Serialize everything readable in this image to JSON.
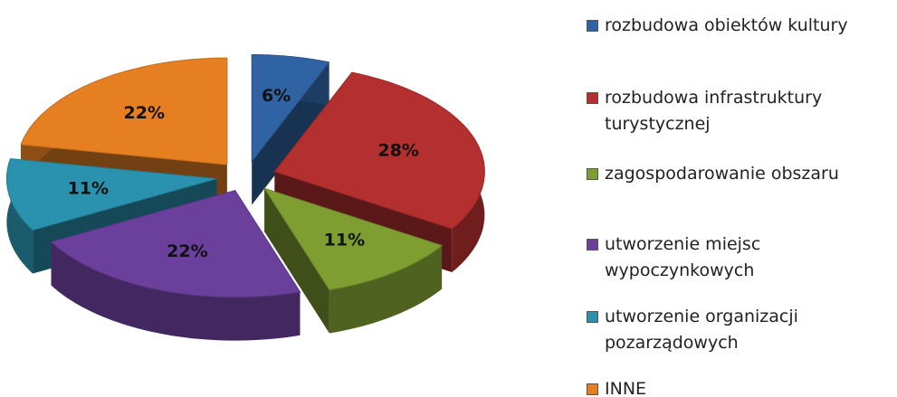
{
  "chart_data": {
    "type": "pie",
    "categories": [
      "rozbudowa obiektów kultury",
      "rozbudowa infrastruktury turystycznej",
      "zagospodarowanie obszaru",
      "utworzenie miejsc wypoczynkowych",
      "utworzenie organizacji pozarządowych",
      "INNE"
    ],
    "values": [
      6,
      28,
      11,
      22,
      11,
      22
    ],
    "value_labels": [
      "6%",
      "28%",
      "11%",
      "22%",
      "11%",
      "22%"
    ],
    "colors": [
      "#2f63a3",
      "#b3302f",
      "#7f9e32",
      "#6b3f9c",
      "#2a92ae",
      "#e57f22"
    ],
    "legend": "right"
  }
}
